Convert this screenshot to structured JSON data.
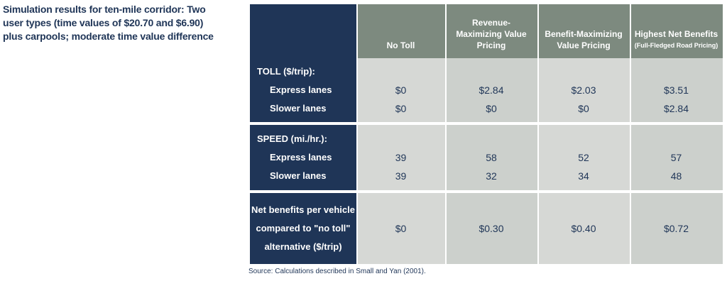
{
  "caption": "Simulation results for ten-mile corridor: Two user types (time values of $20.70 and $6.90) plus carpools; moderate time value difference",
  "headers": {
    "no_toll": "No Toll",
    "rev_max": "Revenue-Maximizing Value Pricing",
    "ben_max": "Benefit-Maximizing Value Pricing",
    "highest": "Highest Net Benefits",
    "highest_sub": "(Full-Fledged Road Pricing)"
  },
  "toll": {
    "title": "TOLL ($/trip):",
    "express_label": "Express lanes",
    "slower_label": "Slower lanes",
    "express": [
      "$0",
      "$2.84",
      "$2.03",
      "$3.51"
    ],
    "slower": [
      "$0",
      "$0",
      "$0",
      "$2.84"
    ]
  },
  "speed": {
    "title": "SPEED (mi./hr.):",
    "express_label": "Express lanes",
    "slower_label": "Slower lanes",
    "express": [
      "39",
      "58",
      "52",
      "57"
    ],
    "slower": [
      "39",
      "32",
      "34",
      "48"
    ]
  },
  "net": {
    "title_line1": "Net benefits per vehicle",
    "title_line2": "compared to \"no toll\"",
    "title_line3": "alternative ($/trip)",
    "values": [
      "$0",
      "$0.30",
      "$0.40",
      "$0.72"
    ]
  },
  "source": "Source: Calculations described in Small and Yan (2001)."
}
